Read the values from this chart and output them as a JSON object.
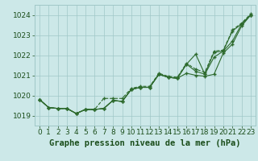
{
  "title": "Graphe pression niveau de la mer (hPa)",
  "x_labels": [
    "0",
    "1",
    "2",
    "3",
    "4",
    "5",
    "6",
    "7",
    "8",
    "9",
    "10",
    "11",
    "12",
    "13",
    "14",
    "15",
    "16",
    "17",
    "18",
    "19",
    "20",
    "21",
    "22",
    "23"
  ],
  "x_values": [
    0,
    1,
    2,
    3,
    4,
    5,
    6,
    7,
    8,
    9,
    10,
    11,
    12,
    13,
    14,
    15,
    16,
    17,
    18,
    19,
    20,
    21,
    22,
    23
  ],
  "ylim": [
    1018.5,
    1024.5
  ],
  "yticks": [
    1019,
    1020,
    1021,
    1022,
    1023,
    1024
  ],
  "line1": [
    1019.8,
    1019.4,
    1019.35,
    1019.35,
    1019.1,
    1019.3,
    1019.3,
    1019.35,
    1019.75,
    1019.7,
    1020.3,
    1020.4,
    1020.4,
    1021.05,
    1020.9,
    1020.85,
    1021.1,
    1021.0,
    1020.95,
    1021.05,
    1022.1,
    1022.55,
    1023.45,
    1024.0
  ],
  "line2": [
    1019.8,
    1019.4,
    1019.35,
    1019.35,
    1019.1,
    1019.3,
    1019.3,
    1019.35,
    1019.75,
    1019.7,
    1020.3,
    1020.4,
    1020.4,
    1021.05,
    1020.9,
    1020.85,
    1021.55,
    1021.2,
    1021.05,
    1022.15,
    1022.2,
    1023.2,
    1023.55,
    1024.0
  ],
  "line3": [
    1019.8,
    1019.4,
    1019.35,
    1019.35,
    1019.1,
    1019.3,
    1019.3,
    1019.35,
    1019.75,
    1019.7,
    1020.3,
    1020.4,
    1020.4,
    1021.05,
    1020.9,
    1020.85,
    1021.55,
    1022.05,
    1021.05,
    1021.9,
    1022.2,
    1022.7,
    1023.55,
    1024.0
  ],
  "line4_dotted": [
    1019.8,
    1019.4,
    1019.35,
    1019.35,
    1019.1,
    1019.3,
    1019.3,
    1019.85,
    1019.85,
    1019.85,
    1020.35,
    1020.45,
    1020.45,
    1021.1,
    1020.95,
    1020.9,
    1021.6,
    1021.3,
    1021.15,
    1022.2,
    1022.25,
    1023.25,
    1023.6,
    1024.05
  ],
  "line_color": "#2d6a2d",
  "marker_color": "#2d6a2d",
  "bg_color": "#cce8e8",
  "grid_color": "#a0c8c8",
  "axis_label_color": "#1a4d1a",
  "title_color": "#1a4d1a",
  "title_fontsize": 7.5,
  "tick_fontsize": 6.5
}
